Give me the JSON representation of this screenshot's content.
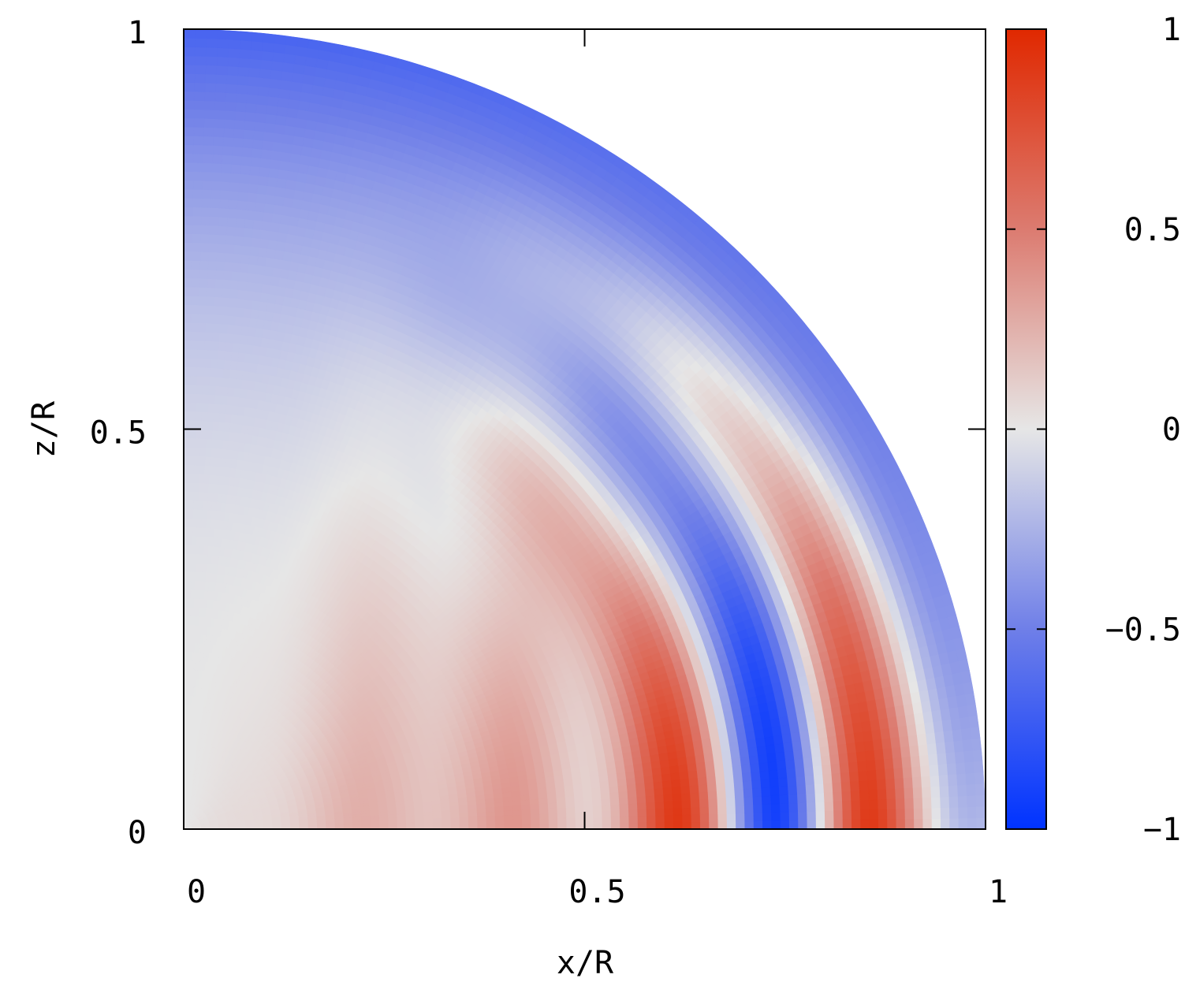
{
  "chart_data": {
    "type": "heatmap",
    "title": "",
    "xlabel": "x/R",
    "ylabel": "z/R",
    "xlim": [
      0,
      1
    ],
    "ylim": [
      0,
      1
    ],
    "x_ticks": [
      {
        "value": 0,
        "label": "0"
      },
      {
        "value": 0.5,
        "label": "0.5"
      },
      {
        "value": 1,
        "label": "1"
      }
    ],
    "y_ticks": [
      {
        "value": 0,
        "label": "0"
      },
      {
        "value": 0.5,
        "label": "0.5"
      },
      {
        "value": 1,
        "label": "1"
      }
    ],
    "domain_shape": "quarter-disc",
    "domain_radius": 1,
    "colorbar": {
      "range": [
        -1,
        1
      ],
      "ticks": [
        {
          "value": 1,
          "label": "1"
        },
        {
          "value": 0.5,
          "label": "0.5"
        },
        {
          "value": 0,
          "label": "0"
        },
        {
          "value": -0.5,
          "label": "−0.5"
        },
        {
          "value": -1,
          "label": "−1"
        }
      ],
      "colors": {
        "min": "#0033ff",
        "mid": "#e6e6e6",
        "max": "#e02800"
      }
    },
    "grid": false
  }
}
